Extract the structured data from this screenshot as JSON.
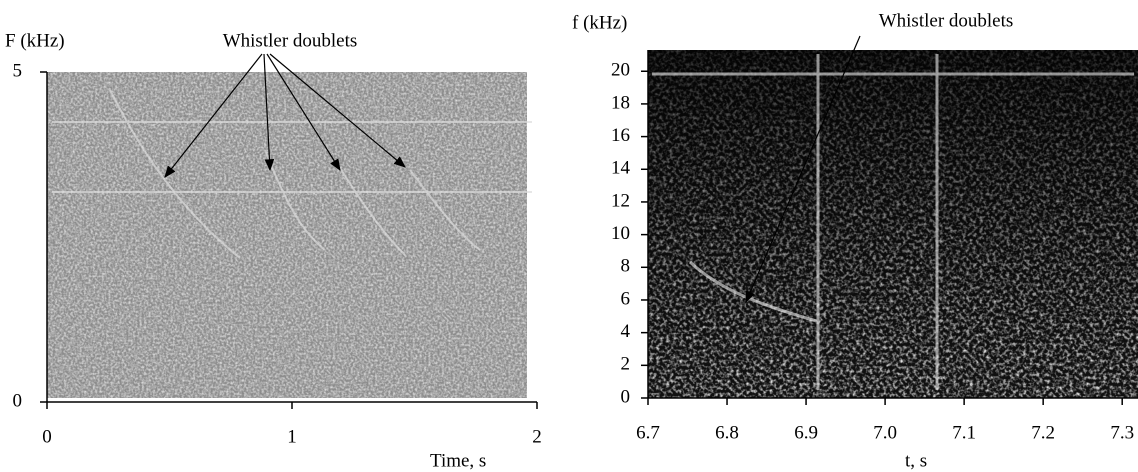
{
  "chart_data": [
    {
      "type": "spectrogram",
      "y_label": "F (kHz)",
      "x_label": "Time, s",
      "annotation": "Whistler doublets",
      "xlim": [
        0,
        2
      ],
      "ylim": [
        0,
        5
      ],
      "xticks": [
        0,
        1,
        2
      ],
      "yticks": [
        0,
        5
      ],
      "color": "#8c8c8c"
    },
    {
      "type": "spectrogram",
      "y_label": "f (kHz)",
      "x_label": "t, s",
      "annotation": "Whistler doublets",
      "xlim": [
        6.7,
        7.32
      ],
      "ylim": [
        0,
        21.3
      ],
      "xticks": [
        6.7,
        6.8,
        6.9,
        {
          "value": 7,
          "label": "7.0"
        },
        7.1,
        7.2,
        7.3
      ],
      "yticks": [
        0,
        2,
        4,
        6,
        8,
        10,
        12,
        14,
        16,
        18,
        20
      ],
      "color": "#111111"
    }
  ]
}
